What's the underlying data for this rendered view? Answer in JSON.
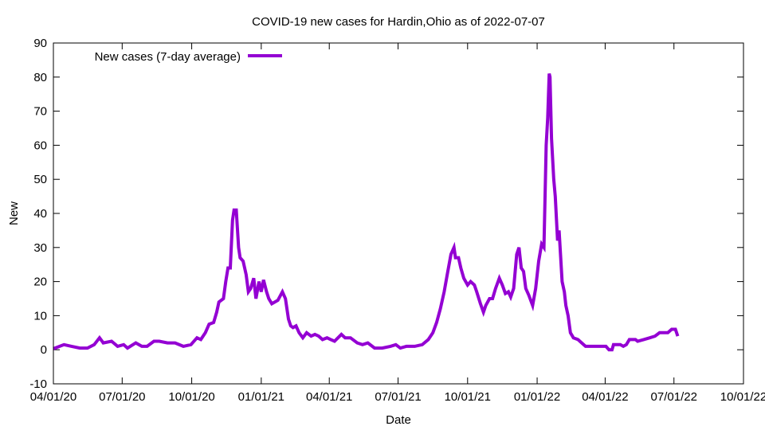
{
  "chart_data": {
    "type": "line",
    "title": "COVID-19 new cases for Hardin,Ohio as of 2022-07-07",
    "xlabel": "Date",
    "ylabel": "New",
    "xlim": [
      "2020-04-01",
      "2022-10-01"
    ],
    "ylim": [
      -10,
      90
    ],
    "yticks": [
      -10,
      0,
      10,
      20,
      30,
      40,
      50,
      60,
      70,
      80,
      90
    ],
    "xticks": [
      {
        "date": "2020-04-01",
        "label": "04/01/20"
      },
      {
        "date": "2020-07-01",
        "label": "07/01/20"
      },
      {
        "date": "2020-10-01",
        "label": "10/01/20"
      },
      {
        "date": "2021-01-01",
        "label": "01/01/21"
      },
      {
        "date": "2021-04-01",
        "label": "04/01/21"
      },
      {
        "date": "2021-07-01",
        "label": "07/01/21"
      },
      {
        "date": "2021-10-01",
        "label": "10/01/21"
      },
      {
        "date": "2022-01-01",
        "label": "01/01/22"
      },
      {
        "date": "2022-04-01",
        "label": "04/01/22"
      },
      {
        "date": "2022-07-01",
        "label": "07/01/22"
      },
      {
        "date": "2022-10-01",
        "label": "10/01/22"
      }
    ],
    "grid": false,
    "legend_placement": "top-left",
    "series": [
      {
        "name": "New cases (7-day average)",
        "color": "#9400d3",
        "points": [
          [
            "2020-04-01",
            0.3
          ],
          [
            "2020-04-15",
            1.5
          ],
          [
            "2020-04-25",
            1
          ],
          [
            "2020-05-06",
            0.5
          ],
          [
            "2020-05-16",
            0.5
          ],
          [
            "2020-05-25",
            1.5
          ],
          [
            "2020-06-01",
            3.5
          ],
          [
            "2020-06-06",
            2
          ],
          [
            "2020-06-17",
            2.5
          ],
          [
            "2020-06-25",
            1
          ],
          [
            "2020-07-03",
            1.5
          ],
          [
            "2020-07-08",
            0.5
          ],
          [
            "2020-07-19",
            2
          ],
          [
            "2020-07-27",
            1
          ],
          [
            "2020-08-03",
            1
          ],
          [
            "2020-08-12",
            2.5
          ],
          [
            "2020-08-19",
            2.5
          ],
          [
            "2020-08-30",
            2
          ],
          [
            "2020-09-09",
            2
          ],
          [
            "2020-09-20",
            1
          ],
          [
            "2020-09-30",
            1.5
          ],
          [
            "2020-10-08",
            3.5
          ],
          [
            "2020-10-13",
            3
          ],
          [
            "2020-10-19",
            5
          ],
          [
            "2020-10-24",
            7.5
          ],
          [
            "2020-10-30",
            8
          ],
          [
            "2020-11-03",
            11
          ],
          [
            "2020-11-06",
            14
          ],
          [
            "2020-11-12",
            15
          ],
          [
            "2020-11-15",
            20
          ],
          [
            "2020-11-18",
            24
          ],
          [
            "2020-11-21",
            24
          ],
          [
            "2020-11-24",
            38
          ],
          [
            "2020-11-26",
            41
          ],
          [
            "2020-11-29",
            41
          ],
          [
            "2020-12-02",
            30
          ],
          [
            "2020-12-04",
            27
          ],
          [
            "2020-12-08",
            26
          ],
          [
            "2020-12-12",
            22
          ],
          [
            "2020-12-15",
            17
          ],
          [
            "2020-12-18",
            18
          ],
          [
            "2020-12-22",
            21
          ],
          [
            "2020-12-25",
            15
          ],
          [
            "2020-12-29",
            20
          ],
          [
            "2021-01-01",
            17
          ],
          [
            "2021-01-04",
            20.5
          ],
          [
            "2021-01-08",
            17
          ],
          [
            "2021-01-11",
            15
          ],
          [
            "2021-01-15",
            13.5
          ],
          [
            "2021-01-19",
            14
          ],
          [
            "2021-01-23",
            14.5
          ],
          [
            "2021-01-29",
            17
          ],
          [
            "2021-02-02",
            15
          ],
          [
            "2021-02-06",
            9
          ],
          [
            "2021-02-09",
            7
          ],
          [
            "2021-02-12",
            6.5
          ],
          [
            "2021-02-16",
            7
          ],
          [
            "2021-02-20",
            5
          ],
          [
            "2021-02-25",
            3.5
          ],
          [
            "2021-03-02",
            5
          ],
          [
            "2021-03-08",
            4
          ],
          [
            "2021-03-13",
            4.5
          ],
          [
            "2021-03-18",
            4
          ],
          [
            "2021-03-23",
            3
          ],
          [
            "2021-03-29",
            3.5
          ],
          [
            "2021-04-03",
            3
          ],
          [
            "2021-04-08",
            2.5
          ],
          [
            "2021-04-17",
            4.5
          ],
          [
            "2021-04-22",
            3.5
          ],
          [
            "2021-04-29",
            3.5
          ],
          [
            "2021-05-08",
            2
          ],
          [
            "2021-05-15",
            1.5
          ],
          [
            "2021-05-22",
            2
          ],
          [
            "2021-05-31",
            0.5
          ],
          [
            "2021-06-10",
            0.5
          ],
          [
            "2021-06-21",
            1
          ],
          [
            "2021-06-28",
            1.5
          ],
          [
            "2021-07-04",
            0.5
          ],
          [
            "2021-07-12",
            1
          ],
          [
            "2021-07-23",
            1
          ],
          [
            "2021-08-02",
            1.5
          ],
          [
            "2021-08-10",
            3
          ],
          [
            "2021-08-16",
            5
          ],
          [
            "2021-08-21",
            8
          ],
          [
            "2021-08-26",
            12
          ],
          [
            "2021-08-31",
            17
          ],
          [
            "2021-09-04",
            22
          ],
          [
            "2021-09-09",
            28
          ],
          [
            "2021-09-13",
            30
          ],
          [
            "2021-09-15",
            27
          ],
          [
            "2021-09-19",
            27
          ],
          [
            "2021-09-22",
            24
          ],
          [
            "2021-09-26",
            21
          ],
          [
            "2021-10-01",
            19
          ],
          [
            "2021-10-05",
            20
          ],
          [
            "2021-10-10",
            19
          ],
          [
            "2021-10-13",
            17
          ],
          [
            "2021-10-18",
            13.5
          ],
          [
            "2021-10-22",
            11
          ],
          [
            "2021-10-25",
            13
          ],
          [
            "2021-10-30",
            15
          ],
          [
            "2021-11-03",
            15
          ],
          [
            "2021-11-07",
            18
          ],
          [
            "2021-11-12",
            21
          ],
          [
            "2021-11-16",
            19
          ],
          [
            "2021-11-20",
            16.5
          ],
          [
            "2021-11-24",
            17
          ],
          [
            "2021-11-27",
            15.5
          ],
          [
            "2021-12-01",
            18
          ],
          [
            "2021-12-05",
            28
          ],
          [
            "2021-12-08",
            30
          ],
          [
            "2021-12-11",
            24
          ],
          [
            "2021-12-14",
            23
          ],
          [
            "2021-12-17",
            18
          ],
          [
            "2021-12-21",
            16
          ],
          [
            "2021-12-26",
            13
          ],
          [
            "2021-12-30",
            18
          ],
          [
            "2022-01-03",
            26
          ],
          [
            "2022-01-07",
            31
          ],
          [
            "2022-01-10",
            30
          ],
          [
            "2022-01-13",
            60
          ],
          [
            "2022-01-15",
            68
          ],
          [
            "2022-01-17",
            81
          ],
          [
            "2022-01-18",
            80
          ],
          [
            "2022-01-20",
            62
          ],
          [
            "2022-01-23",
            50
          ],
          [
            "2022-01-25",
            45
          ],
          [
            "2022-01-28",
            32
          ],
          [
            "2022-01-30",
            35
          ],
          [
            "2022-02-03",
            20
          ],
          [
            "2022-02-06",
            17
          ],
          [
            "2022-02-08",
            13
          ],
          [
            "2022-02-11",
            10
          ],
          [
            "2022-02-14",
            5
          ],
          [
            "2022-02-18",
            3.5
          ],
          [
            "2022-02-24",
            3
          ],
          [
            "2022-03-01",
            2
          ],
          [
            "2022-03-06",
            1
          ],
          [
            "2022-03-17",
            1
          ],
          [
            "2022-03-24",
            1
          ],
          [
            "2022-04-02",
            1
          ],
          [
            "2022-04-06",
            0
          ],
          [
            "2022-04-10",
            0
          ],
          [
            "2022-04-12",
            1.5
          ],
          [
            "2022-04-21",
            1.5
          ],
          [
            "2022-04-25",
            1
          ],
          [
            "2022-04-29",
            1.5
          ],
          [
            "2022-05-03",
            3
          ],
          [
            "2022-05-11",
            3
          ],
          [
            "2022-05-14",
            2.5
          ],
          [
            "2022-05-22",
            3
          ],
          [
            "2022-05-30",
            3.5
          ],
          [
            "2022-06-06",
            4
          ],
          [
            "2022-06-12",
            5
          ],
          [
            "2022-06-18",
            5
          ],
          [
            "2022-06-23",
            5
          ],
          [
            "2022-06-28",
            6
          ],
          [
            "2022-07-03",
            6
          ],
          [
            "2022-07-06",
            4
          ]
        ]
      }
    ]
  }
}
